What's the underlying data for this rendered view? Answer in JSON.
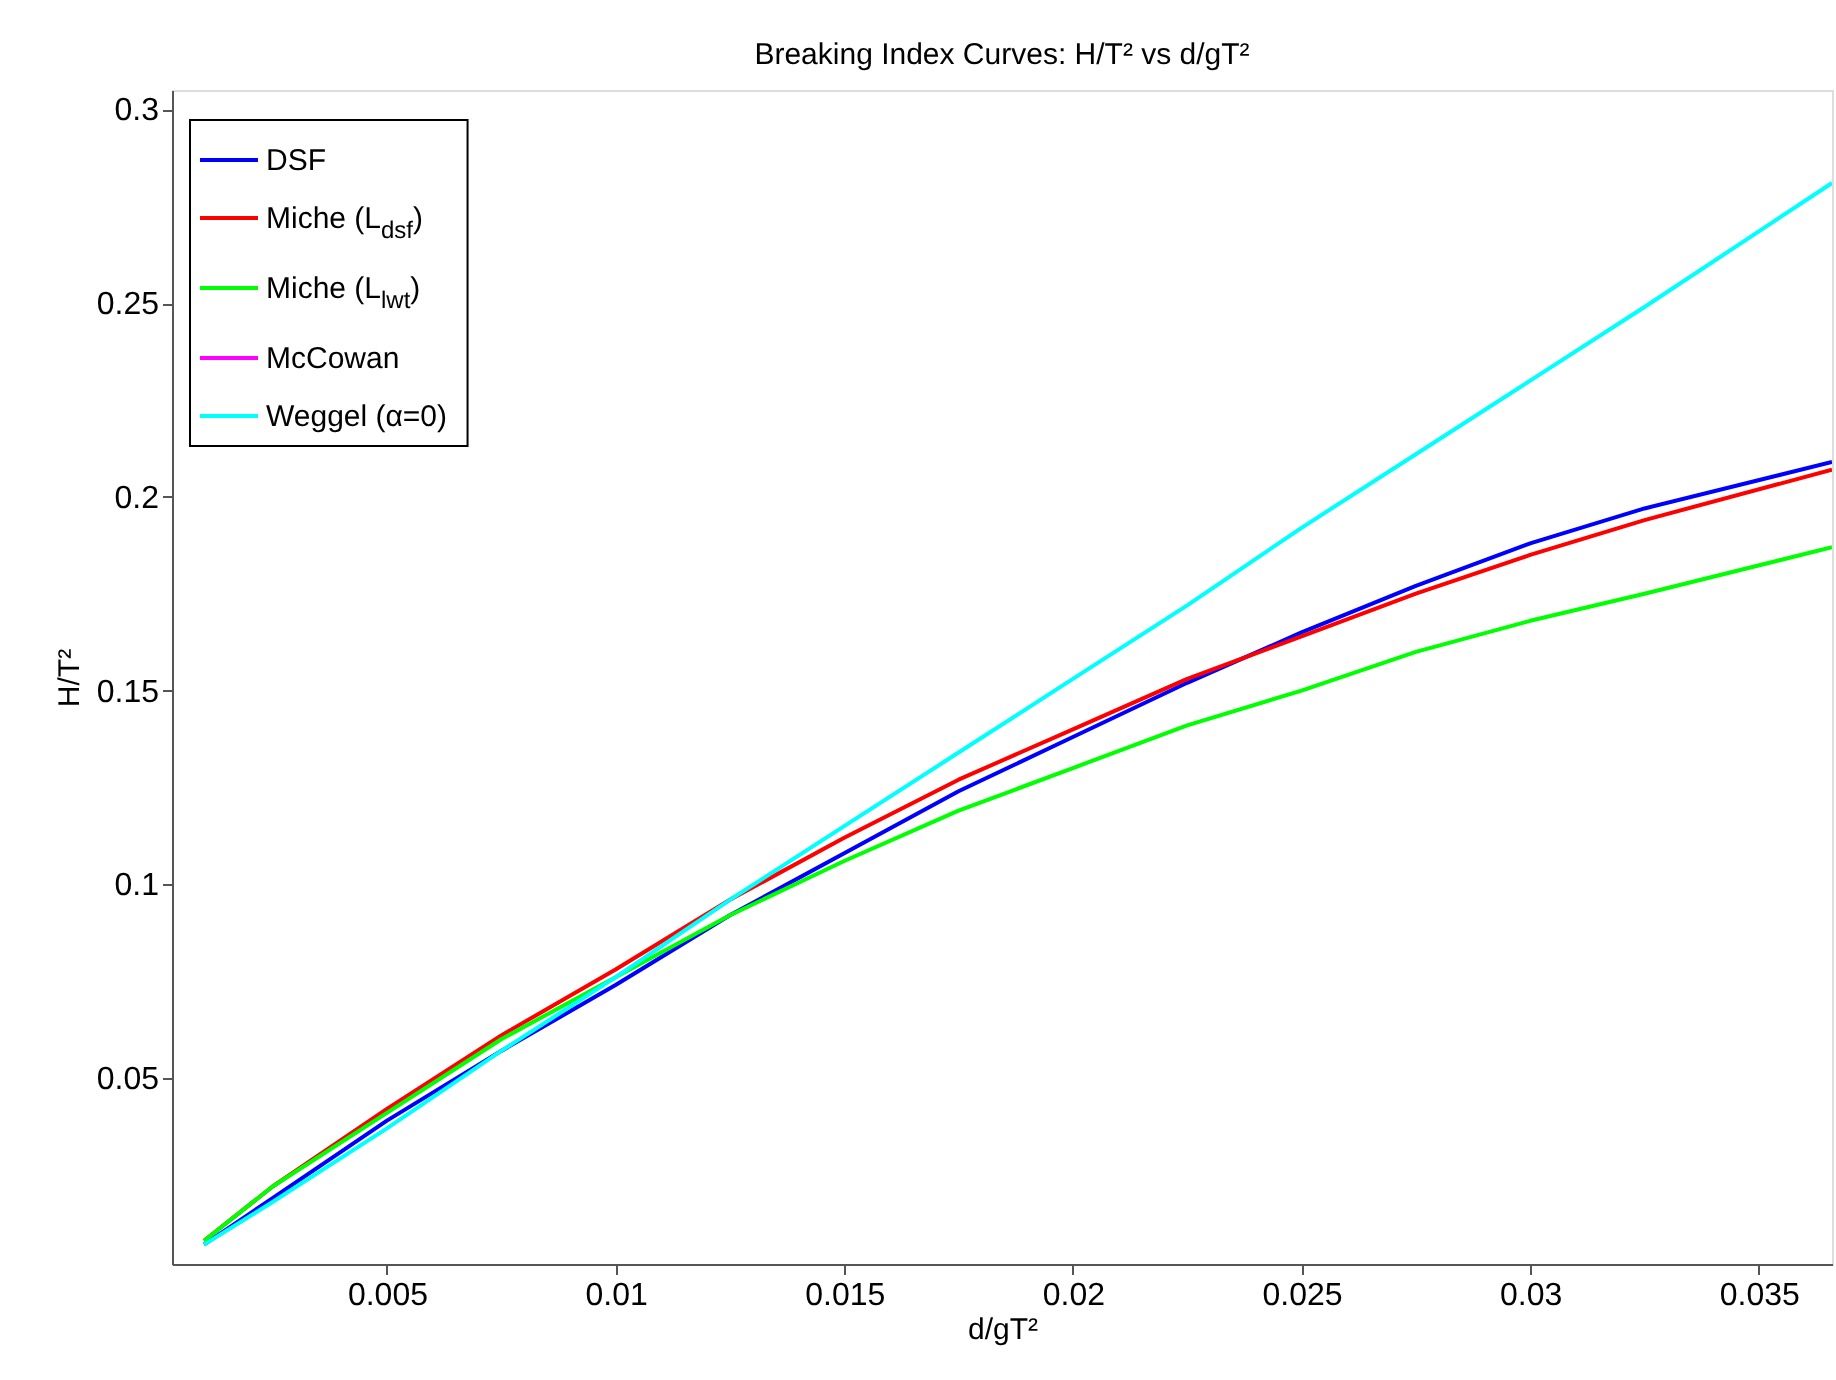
{
  "chart_data": {
    "type": "line",
    "title": "Breaking Index Curves: H/T² vs d/gT²",
    "xlabel": "d/gT²",
    "ylabel": "H/T²",
    "xlim": [
      0.0003,
      0.0366
    ],
    "ylim": [
      0.002,
      0.305
    ],
    "xticks": [
      0.005,
      0.01,
      0.015,
      0.02,
      0.025,
      0.03,
      0.035
    ],
    "yticks": [
      0.05,
      0.1,
      0.15,
      0.2,
      0.25,
      0.3
    ],
    "grid": false,
    "legend": "top left",
    "line_style": "solid",
    "marker": "none",
    "x": [
      0.001,
      0.0025,
      0.005,
      0.0075,
      0.01,
      0.0125,
      0.015,
      0.0175,
      0.02,
      0.0225,
      0.025,
      0.0275,
      0.03,
      0.0325,
      0.0366
    ],
    "series": [
      {
        "name": "DSF",
        "color": "#0000ff",
        "values": [
          0.007,
          0.019,
          0.039,
          0.057,
          0.074,
          0.092,
          0.108,
          0.124,
          0.138,
          0.152,
          0.165,
          0.177,
          0.188,
          0.197,
          0.209
        ]
      },
      {
        "name": "Miche (L$_{dsf}$)",
        "color": "#ff0000",
        "values": [
          0.008,
          0.022,
          0.042,
          0.061,
          0.078,
          0.096,
          0.112,
          0.127,
          0.14,
          0.153,
          0.164,
          0.175,
          0.185,
          0.194,
          0.207
        ]
      },
      {
        "name": "Miche (L$_{lwt}$)",
        "color": "#00ff00",
        "values": [
          0.008,
          0.022,
          0.041,
          0.06,
          0.076,
          0.092,
          0.106,
          0.119,
          0.13,
          0.141,
          0.15,
          0.16,
          0.168,
          0.175,
          0.187
        ]
      },
      {
        "name": "McCowan",
        "color": "#ff00ff",
        "values": [
          null,
          null,
          null,
          null,
          null,
          null,
          null,
          null,
          null,
          null,
          null,
          null,
          null,
          null,
          null
        ]
      },
      {
        "name": "Weggel (α=0)",
        "color": "#00ffff",
        "values": [
          0.007,
          0.018,
          0.037,
          0.057,
          0.076,
          0.096,
          0.115,
          0.134,
          0.153,
          0.172,
          0.192,
          0.211,
          0.23,
          0.249,
          0.281
        ]
      }
    ]
  }
}
